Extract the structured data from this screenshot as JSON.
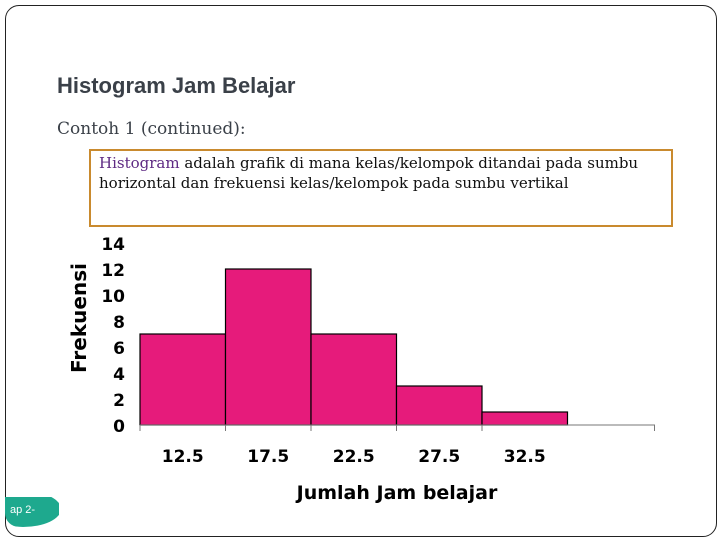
{
  "slide": {
    "title": "Histogram Jam Belajar",
    "subtitle": "Contoh 1 (continued):",
    "callout": {
      "highlight": "Histogram",
      "text": " adalah grafik di mana kelas/kelompok ditandai pada sumbu horizontal dan frekuensi kelas/kelompok pada sumbu vertikal"
    },
    "slide_number": "ap 2-"
  },
  "chart_data": {
    "type": "bar",
    "xlabel": "Jumlah Jam belajar",
    "ylabel": "Frekuensi",
    "categories": [
      "12.5",
      "17.5",
      "22.5",
      "27.5",
      "32.5"
    ],
    "values": [
      7,
      12,
      7,
      3,
      1
    ],
    "yticks": [
      "0",
      "2",
      "4",
      "6",
      "8",
      "10",
      "12",
      "14"
    ],
    "ylim": [
      0,
      14
    ],
    "bar_color": "#e61b7b",
    "grid": false,
    "legend": "none"
  }
}
